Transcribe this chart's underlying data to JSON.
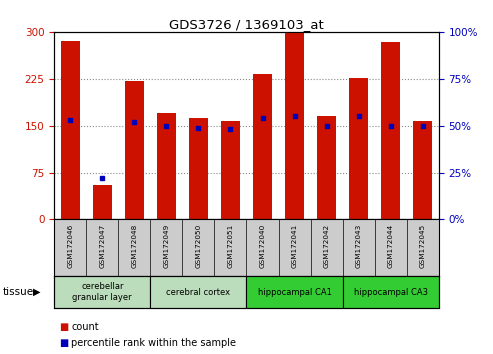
{
  "title": "GDS3726 / 1369103_at",
  "samples": [
    "GSM172046",
    "GSM172047",
    "GSM172048",
    "GSM172049",
    "GSM172050",
    "GSM172051",
    "GSM172040",
    "GSM172041",
    "GSM172042",
    "GSM172043",
    "GSM172044",
    "GSM172045"
  ],
  "counts": [
    285,
    55,
    222,
    170,
    163,
    158,
    232,
    298,
    165,
    227,
    283,
    157
  ],
  "percentiles": [
    53,
    22,
    52,
    50,
    49,
    48,
    54,
    55,
    50,
    55,
    50,
    50
  ],
  "left_ylim": [
    0,
    300
  ],
  "right_ylim": [
    0,
    100
  ],
  "left_yticks": [
    0,
    75,
    150,
    225,
    300
  ],
  "right_yticks": [
    0,
    25,
    50,
    75,
    100
  ],
  "bar_color": "#cc1100",
  "dot_color": "#0000bb",
  "tissue_groups": [
    {
      "label": "cerebellar\ngranular layer",
      "start": 0,
      "end": 2,
      "color": "#bbddbb"
    },
    {
      "label": "cerebral cortex",
      "start": 3,
      "end": 5,
      "color": "#bbddbb"
    },
    {
      "label": "hippocampal CA1",
      "start": 6,
      "end": 8,
      "color": "#33cc33"
    },
    {
      "label": "hippocampal CA3",
      "start": 9,
      "end": 11,
      "color": "#33cc33"
    }
  ],
  "tick_color_left": "#cc1100",
  "tick_color_right": "#0000bb",
  "grid_color": "#888888",
  "bg_label": "#cccccc",
  "bg_plot": "#ffffff"
}
